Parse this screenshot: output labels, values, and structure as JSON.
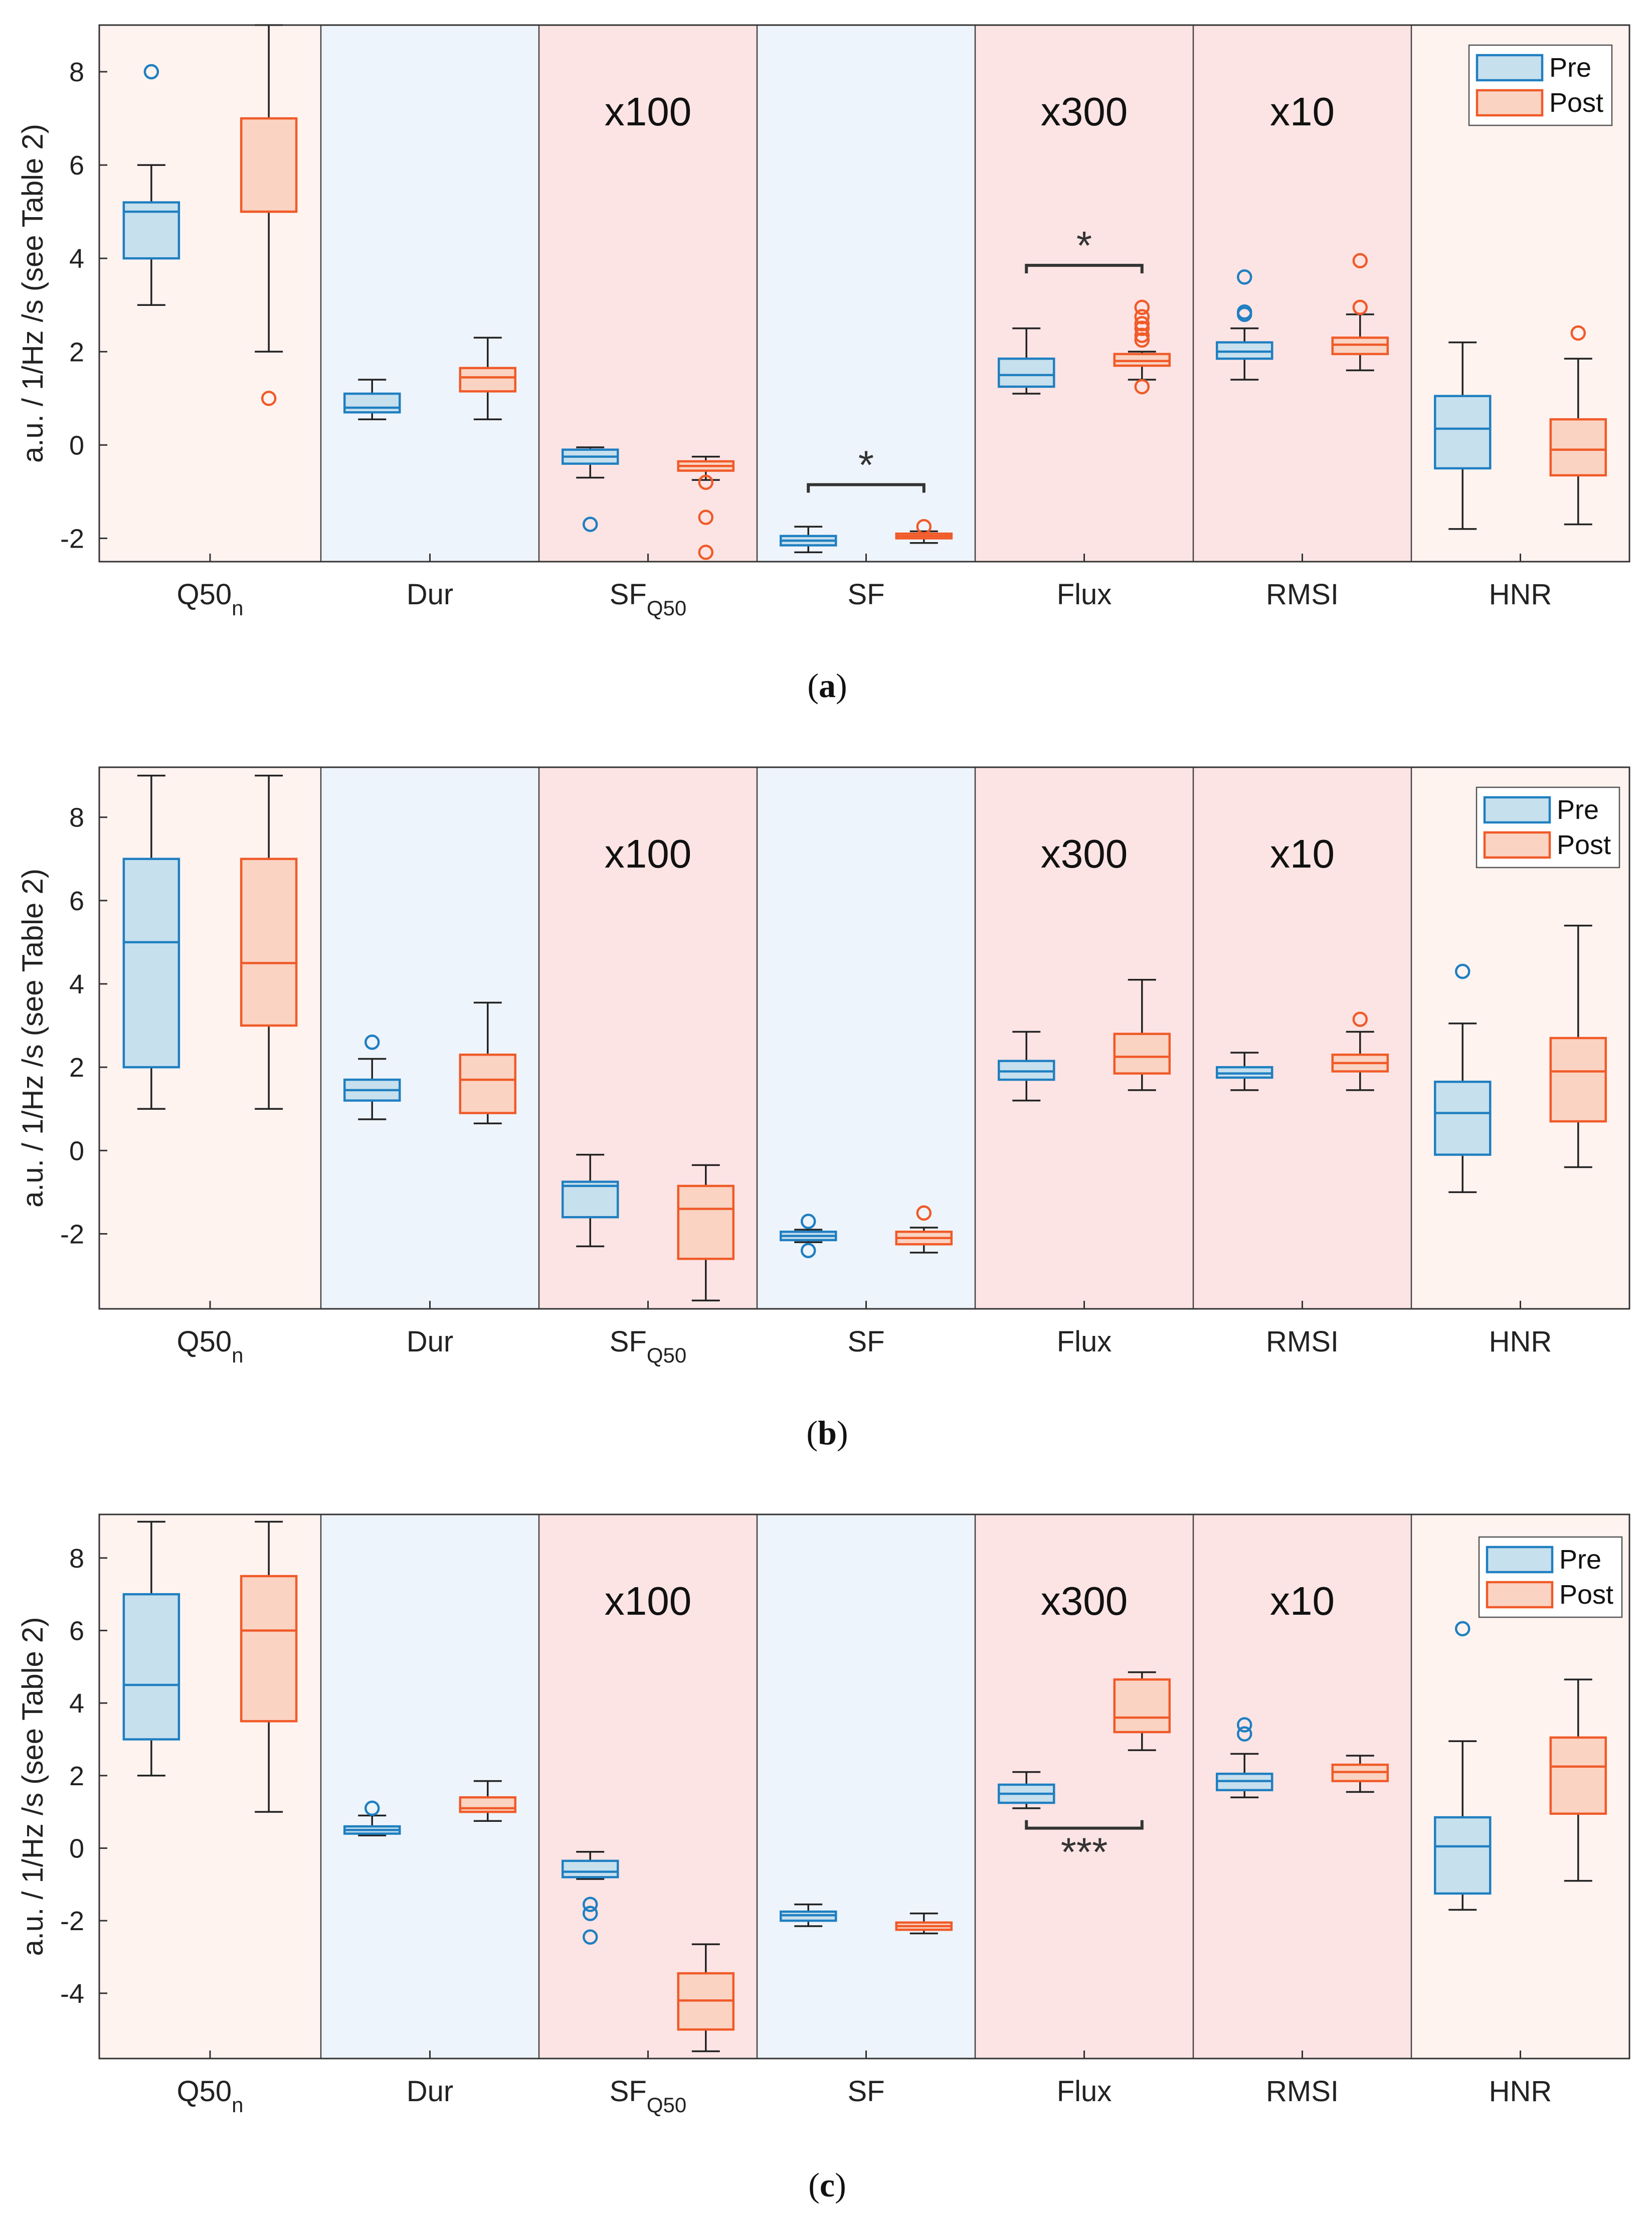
{
  "figure": {
    "colors": {
      "pre_stroke": "#1f7fc1",
      "pre_fill": "#c7e0ee",
      "post_stroke": "#f05a28",
      "post_fill": "#fbd3c2",
      "whisker": "#222222",
      "band_light_pink": "#fff3f0",
      "band_light_blue": "#eef4fb",
      "band_pink": "#fde4e4"
    },
    "legend": {
      "pre": "Pre",
      "post": "Post"
    }
  },
  "chart_data": [
    {
      "type": "box",
      "caption_letter": "a",
      "ylabel": "a.u. / 1/Hz /s (see Table 2)",
      "ylim": [
        -2.5,
        9
      ],
      "yticks": [
        -2,
        0,
        2,
        4,
        6,
        8
      ],
      "categories": [
        {
          "label": "Q50",
          "sub": "n",
          "band": "band_light_pink",
          "scale": ""
        },
        {
          "label": "Dur",
          "sub": "",
          "band": "band_light_blue",
          "scale": ""
        },
        {
          "label": "SF",
          "sub": "Q50",
          "band": "band_pink",
          "scale": "x100"
        },
        {
          "label": "SF",
          "sub": "",
          "band": "band_light_blue",
          "scale": ""
        },
        {
          "label": "Flux",
          "sub": "",
          "band": "band_pink",
          "scale": "x300"
        },
        {
          "label": "RMSI",
          "sub": "",
          "band": "band_pink",
          "scale": "x10"
        },
        {
          "label": "HNR",
          "sub": "",
          "band": "band_light_pink",
          "scale": ""
        }
      ],
      "series": [
        {
          "name": "Pre",
          "boxes": [
            {
              "whislo": 3,
              "q1": 4,
              "med": 5,
              "q3": 5.2,
              "whishi": 6,
              "fliers": [
                8
              ]
            },
            {
              "whislo": 0.55,
              "q1": 0.7,
              "med": 0.8,
              "q3": 1.1,
              "whishi": 1.4,
              "fliers": []
            },
            {
              "whislo": -0.7,
              "q1": -0.4,
              "med": -0.25,
              "q3": -0.1,
              "whishi": -0.05,
              "fliers": [
                -1.7
              ]
            },
            {
              "whislo": -2.3,
              "q1": -2.15,
              "med": -2.05,
              "q3": -1.95,
              "whishi": -1.75,
              "fliers": []
            },
            {
              "whislo": 1.1,
              "q1": 1.25,
              "med": 1.5,
              "q3": 1.85,
              "whishi": 2.5,
              "fliers": []
            },
            {
              "whislo": 1.4,
              "q1": 1.85,
              "med": 2.0,
              "q3": 2.2,
              "whishi": 2.5,
              "fliers": [
                2.8,
                2.85,
                3.6
              ]
            },
            {
              "whislo": -1.8,
              "q1": -0.5,
              "med": 0.35,
              "q3": 1.05,
              "whishi": 2.2,
              "fliers": []
            }
          ]
        },
        {
          "name": "Post",
          "boxes": [
            {
              "whislo": 2,
              "q1": 5,
              "med": 5,
              "q3": 7,
              "whishi": 9,
              "fliers": [
                1
              ]
            },
            {
              "whislo": 0.55,
              "q1": 1.15,
              "med": 1.45,
              "q3": 1.65,
              "whishi": 2.3,
              "fliers": []
            },
            {
              "whislo": -0.75,
              "q1": -0.55,
              "med": -0.45,
              "q3": -0.35,
              "whishi": -0.25,
              "fliers": [
                -0.8,
                -1.55,
                -2.3
              ]
            },
            {
              "whislo": -2.1,
              "q1": -2.0,
              "med": -1.95,
              "q3": -1.9,
              "whishi": -1.85,
              "fliers": [
                -1.75
              ]
            },
            {
              "whislo": 1.4,
              "q1": 1.7,
              "med": 1.8,
              "q3": 1.95,
              "whishi": 2.0,
              "fliers": [
                1.25,
                2.25,
                2.35,
                2.5,
                2.6,
                2.75,
                2.95
              ]
            },
            {
              "whislo": 1.6,
              "q1": 1.95,
              "med": 2.15,
              "q3": 2.3,
              "whishi": 2.8,
              "fliers": [
                2.95,
                3.95
              ]
            },
            {
              "whislo": -1.7,
              "q1": -0.65,
              "med": -0.1,
              "q3": 0.55,
              "whishi": 1.85,
              "fliers": [
                2.4
              ]
            }
          ]
        }
      ],
      "significance": [
        {
          "category": 3,
          "y": -0.85,
          "label": "*",
          "label_above": true
        },
        {
          "category": 4,
          "y": 3.85,
          "label": "*",
          "label_above": true
        }
      ]
    },
    {
      "type": "box",
      "caption_letter": "b",
      "ylabel": "a.u. / 1/Hz /s (see Table 2)",
      "ylim": [
        -3.8,
        9.2
      ],
      "yticks": [
        -2,
        0,
        2,
        4,
        6,
        8
      ],
      "categories": [
        {
          "label": "Q50",
          "sub": "n",
          "band": "band_light_pink",
          "scale": ""
        },
        {
          "label": "Dur",
          "sub": "",
          "band": "band_light_blue",
          "scale": ""
        },
        {
          "label": "SF",
          "sub": "Q50",
          "band": "band_pink",
          "scale": "x100"
        },
        {
          "label": "SF",
          "sub": "",
          "band": "band_light_blue",
          "scale": ""
        },
        {
          "label": "Flux",
          "sub": "",
          "band": "band_pink",
          "scale": "x300"
        },
        {
          "label": "RMSI",
          "sub": "",
          "band": "band_pink",
          "scale": "x10"
        },
        {
          "label": "HNR",
          "sub": "",
          "band": "band_light_pink",
          "scale": ""
        }
      ],
      "series": [
        {
          "name": "Pre",
          "boxes": [
            {
              "whislo": 1,
              "q1": 2,
              "med": 5,
              "q3": 7,
              "whishi": 9,
              "fliers": []
            },
            {
              "whislo": 0.75,
              "q1": 1.2,
              "med": 1.45,
              "q3": 1.7,
              "whishi": 2.2,
              "fliers": [
                2.6
              ]
            },
            {
              "whislo": -2.3,
              "q1": -1.6,
              "med": -0.85,
              "q3": -0.75,
              "whishi": -0.1,
              "fliers": []
            },
            {
              "whislo": -2.2,
              "q1": -2.15,
              "med": -2.05,
              "q3": -1.95,
              "whishi": -1.9,
              "fliers": [
                -1.7,
                -2.4
              ]
            },
            {
              "whislo": 1.2,
              "q1": 1.7,
              "med": 1.9,
              "q3": 2.15,
              "whishi": 2.85,
              "fliers": []
            },
            {
              "whislo": 1.45,
              "q1": 1.75,
              "med": 1.85,
              "q3": 2.0,
              "whishi": 2.35,
              "fliers": []
            },
            {
              "whislo": -1.0,
              "q1": -0.1,
              "med": 0.9,
              "q3": 1.65,
              "whishi": 3.05,
              "fliers": [
                4.3
              ]
            }
          ]
        },
        {
          "name": "Post",
          "boxes": [
            {
              "whislo": 1,
              "q1": 3,
              "med": 4.5,
              "q3": 7,
              "whishi": 9,
              "fliers": []
            },
            {
              "whislo": 0.65,
              "q1": 0.9,
              "med": 1.7,
              "q3": 2.3,
              "whishi": 3.55,
              "fliers": []
            },
            {
              "whislo": -3.6,
              "q1": -2.6,
              "med": -1.4,
              "q3": -0.85,
              "whishi": -0.35,
              "fliers": []
            },
            {
              "whislo": -2.45,
              "q1": -2.25,
              "med": -2.1,
              "q3": -1.95,
              "whishi": -1.85,
              "fliers": [
                -1.5
              ]
            },
            {
              "whislo": 1.45,
              "q1": 1.85,
              "med": 2.25,
              "q3": 2.8,
              "whishi": 4.1,
              "fliers": []
            },
            {
              "whislo": 1.45,
              "q1": 1.9,
              "med": 2.1,
              "q3": 2.3,
              "whishi": 2.85,
              "fliers": [
                3.15
              ]
            },
            {
              "whislo": -0.4,
              "q1": 0.7,
              "med": 1.9,
              "q3": 2.7,
              "whishi": 5.4,
              "fliers": []
            }
          ]
        }
      ],
      "significance": []
    },
    {
      "type": "box",
      "caption_letter": "c",
      "ylabel": "a.u. / 1/Hz /s (see Table 2)",
      "ylim": [
        -5.8,
        9.2
      ],
      "yticks": [
        -4,
        -2,
        0,
        2,
        4,
        6,
        8
      ],
      "categories": [
        {
          "label": "Q50",
          "sub": "n",
          "band": "band_light_pink",
          "scale": ""
        },
        {
          "label": "Dur",
          "sub": "",
          "band": "band_light_blue",
          "scale": ""
        },
        {
          "label": "SF",
          "sub": "Q50",
          "band": "band_pink",
          "scale": "x100"
        },
        {
          "label": "SF",
          "sub": "",
          "band": "band_light_blue",
          "scale": ""
        },
        {
          "label": "Flux",
          "sub": "",
          "band": "band_pink",
          "scale": "x300"
        },
        {
          "label": "RMSI",
          "sub": "",
          "band": "band_pink",
          "scale": "x10"
        },
        {
          "label": "HNR",
          "sub": "",
          "band": "band_light_pink",
          "scale": ""
        }
      ],
      "series": [
        {
          "name": "Pre",
          "boxes": [
            {
              "whislo": 2,
              "q1": 3,
              "med": 4.5,
              "q3": 7,
              "whishi": 9,
              "fliers": []
            },
            {
              "whislo": 0.35,
              "q1": 0.4,
              "med": 0.5,
              "q3": 0.6,
              "whishi": 0.9,
              "fliers": [
                1.1
              ]
            },
            {
              "whislo": -0.85,
              "q1": -0.8,
              "med": -0.65,
              "q3": -0.35,
              "whishi": -0.1,
              "fliers": [
                -1.55,
                -1.8,
                -2.45
              ]
            },
            {
              "whislo": -2.15,
              "q1": -2.0,
              "med": -1.85,
              "q3": -1.75,
              "whishi": -1.55,
              "fliers": []
            },
            {
              "whislo": 1.1,
              "q1": 1.25,
              "med": 1.5,
              "q3": 1.75,
              "whishi": 2.1,
              "fliers": []
            },
            {
              "whislo": 1.4,
              "q1": 1.6,
              "med": 1.85,
              "q3": 2.05,
              "whishi": 2.6,
              "fliers": [
                3.15,
                3.4
              ]
            },
            {
              "whislo": -1.7,
              "q1": -1.25,
              "med": 0.05,
              "q3": 0.85,
              "whishi": 2.95,
              "fliers": [
                6.05
              ]
            }
          ]
        },
        {
          "name": "Post",
          "boxes": [
            {
              "whislo": 1,
              "q1": 3.5,
              "med": 6,
              "q3": 7.5,
              "whishi": 9,
              "fliers": []
            },
            {
              "whislo": 0.75,
              "q1": 1.0,
              "med": 1.1,
              "q3": 1.4,
              "whishi": 1.85,
              "fliers": []
            },
            {
              "whislo": -5.6,
              "q1": -5.0,
              "med": -4.2,
              "q3": -3.45,
              "whishi": -2.65,
              "fliers": []
            },
            {
              "whislo": -2.35,
              "q1": -2.25,
              "med": -2.15,
              "q3": -2.05,
              "whishi": -1.8,
              "fliers": []
            },
            {
              "whislo": 2.7,
              "q1": 3.2,
              "med": 3.6,
              "q3": 4.65,
              "whishi": 4.85,
              "fliers": []
            },
            {
              "whislo": 1.55,
              "q1": 1.85,
              "med": 2.1,
              "q3": 2.3,
              "whishi": 2.55,
              "fliers": []
            },
            {
              "whislo": -0.9,
              "q1": 0.95,
              "med": 2.25,
              "q3": 3.05,
              "whishi": 4.65,
              "fliers": []
            }
          ]
        }
      ],
      "significance": [
        {
          "category": 4,
          "y": 0.55,
          "label": "***",
          "label_above": false
        }
      ]
    }
  ]
}
